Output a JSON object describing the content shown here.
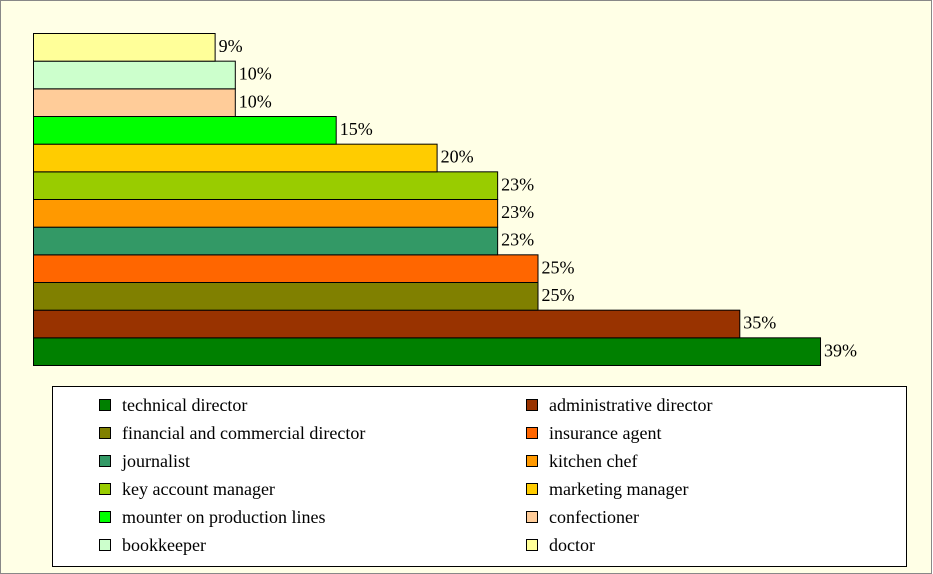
{
  "chart_data": {
    "type": "bar",
    "orientation": "horizontal",
    "categories": [
      "technical director",
      "administrative director",
      "financial and commercial director",
      "insurance agent",
      "journalist",
      "kitchen chef",
      "key account manager",
      "marketing manager",
      "mounter on production lines",
      "confectioner",
      "bookkeeper",
      "doctor"
    ],
    "values": [
      39,
      35,
      25,
      25,
      23,
      23,
      23,
      20,
      15,
      10,
      10,
      9
    ],
    "value_labels": [
      "39%",
      "35%",
      "25%",
      "25%",
      "23%",
      "23%",
      "23%",
      "20%",
      "15%",
      "10%",
      "10%",
      "9%"
    ],
    "colors": [
      "#008000",
      "#993300",
      "#808000",
      "#ff6600",
      "#339966",
      "#ff9900",
      "#99cc00",
      "#ffcc00",
      "#00ff00",
      "#ffcc99",
      "#ccffcc",
      "#ffff99"
    ],
    "legend": "bottom"
  }
}
